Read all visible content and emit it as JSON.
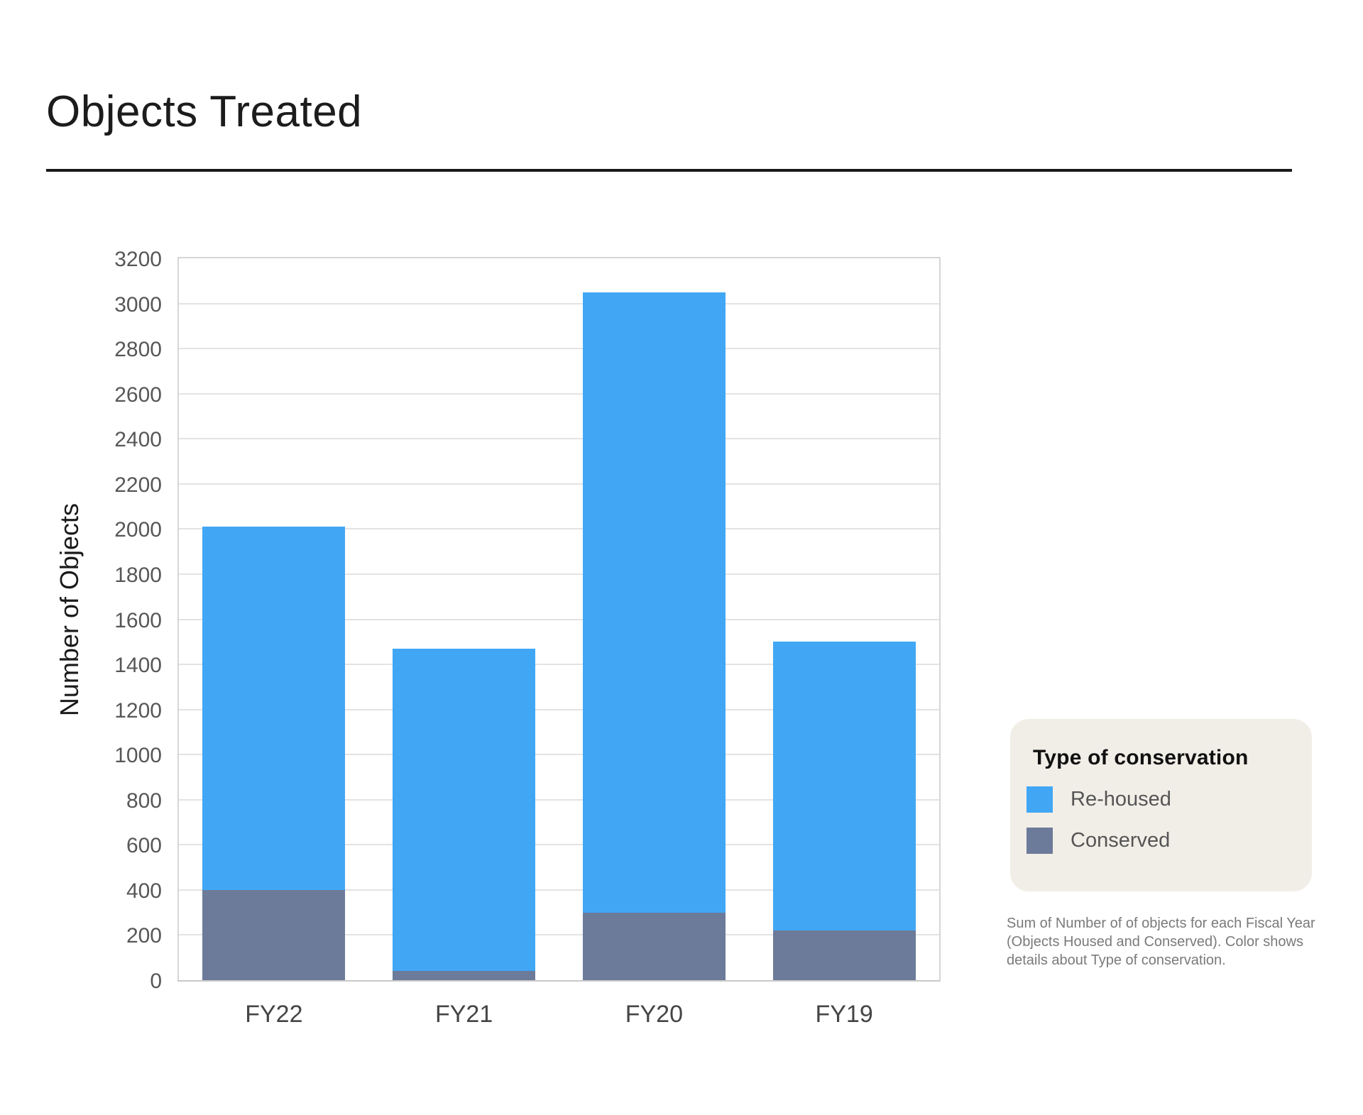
{
  "header": {
    "title": "Objects Treated"
  },
  "chart_data": {
    "type": "bar",
    "stacked": true,
    "title": "Objects Treated",
    "xlabel": "",
    "ylabel": "Number of Objects",
    "categories": [
      "FY22",
      "FY21",
      "FY20",
      "FY19"
    ],
    "series": [
      {
        "name": "Conserved",
        "color": "#6c7b99",
        "values": [
          400,
          40,
          300,
          220
        ]
      },
      {
        "name": "Re-housed",
        "color": "#41a7f5",
        "values": [
          1610,
          1430,
          2750,
          1280
        ]
      }
    ],
    "totals": [
      2010,
      1470,
      3050,
      1500
    ],
    "ylim": [
      0,
      3200
    ],
    "ytick_step": 200,
    "grid": true,
    "legend_position": "right",
    "bar_color_rehoused": "#41a7f5",
    "bar_color_conserved": "#6c7b99"
  },
  "legend": {
    "title": "Type of conservation",
    "items": [
      {
        "label": "Re-housed",
        "color": "#41a7f5"
      },
      {
        "label": "Conserved",
        "color": "#6c7b99"
      }
    ],
    "background": "#f1eee7"
  },
  "caption": {
    "text": "Sum of Number of of objects for each Fiscal Year (Objects Housed and Conserved). Color shows details about Type of conservation."
  }
}
